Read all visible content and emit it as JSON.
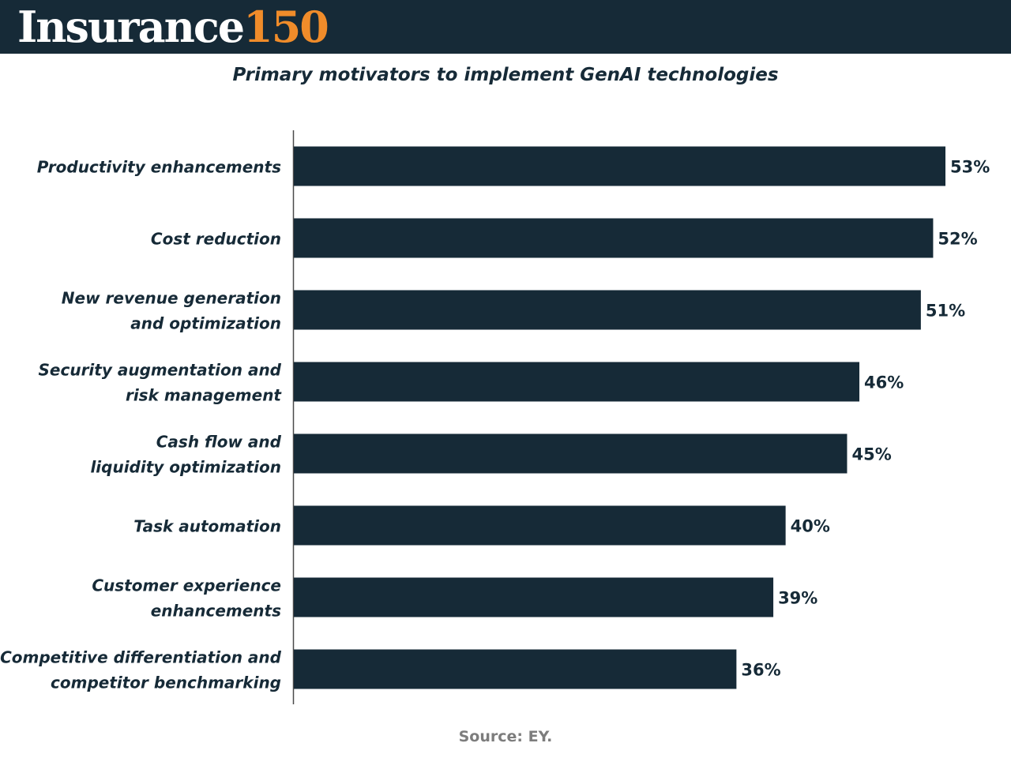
{
  "header": {
    "logo_word": "Insurance",
    "logo_number": "150",
    "colors": {
      "background": "#162a37",
      "word": "#ffffff",
      "number": "#f08c2a"
    }
  },
  "source": "Source: EY.",
  "chart_data": {
    "type": "bar",
    "orientation": "horizontal",
    "title": "Primary motivators to implement GenAI technologies",
    "categories": [
      [
        "Productivity enhancements"
      ],
      [
        "Cost reduction"
      ],
      [
        "New revenue generation",
        "and optimization"
      ],
      [
        "Security augmentation and",
        "risk management"
      ],
      [
        "Cash flow and",
        "liquidity optimization"
      ],
      [
        "Task automation"
      ],
      [
        "Customer experience",
        "enhancements"
      ],
      [
        "Competitive differentiation and",
        "competitor benchmarking"
      ]
    ],
    "values": [
      53,
      52,
      51,
      46,
      45,
      40,
      39,
      36
    ],
    "value_labels": [
      "53%",
      "52%",
      "51%",
      "46%",
      "45%",
      "40%",
      "39%",
      "36%"
    ],
    "unit": "%",
    "bar_color": "#162a37",
    "grid": false,
    "legend": "none"
  }
}
